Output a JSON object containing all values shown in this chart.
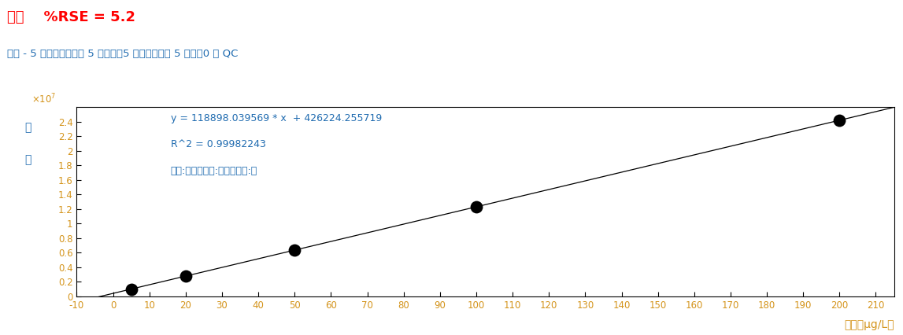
{
  "title": "乙苯    %RSE = 5.2",
  "subtitle": "乙苯 - 5 个级别，使用了 5 个级别，5 个点，使用了 5 个点，0 个 QC",
  "equation_line1": "y = 118898.039569 * x  + 426224.255719",
  "equation_line2": "R^2 = 0.99982243",
  "equation_line3": "类型:线性，原点:忽略，权重:无",
  "xlabel": "浓度（μg/L）",
  "ylabel_line1": "响",
  "ylabel_line2": "应",
  "slope": 118898.039569,
  "intercept": 426224.255719,
  "x_data": [
    5,
    20,
    50,
    100,
    200
  ],
  "y_data": [
    1016714.4,
    2806425.2,
    6371124.8,
    12316028.7,
    24206033.5
  ],
  "xlim": [
    -10,
    215
  ],
  "ylim": [
    0,
    26000000.0
  ],
  "ytick_values": [
    0,
    0.2,
    0.4,
    0.6,
    0.8,
    1.0,
    1.2,
    1.4,
    1.6,
    1.8,
    2.0,
    2.2,
    2.4
  ],
  "xtick_values": [
    -10,
    0,
    10,
    20,
    30,
    40,
    50,
    60,
    70,
    80,
    90,
    100,
    110,
    120,
    130,
    140,
    150,
    160,
    170,
    180,
    190,
    200,
    210
  ],
  "title_color": "#FF0000",
  "subtitle_color": "#1F6BB0",
  "equation_color": "#1F6BB0",
  "spine_color": "#000000",
  "tick_label_color": "#D4941B",
  "dot_color": "#000000",
  "line_color": "#000000",
  "bg_color": "#FFFFFF",
  "ylabel_color": "#1F6BB0",
  "xlabel_color": "#D4941B",
  "x107_color": "#D4941B"
}
